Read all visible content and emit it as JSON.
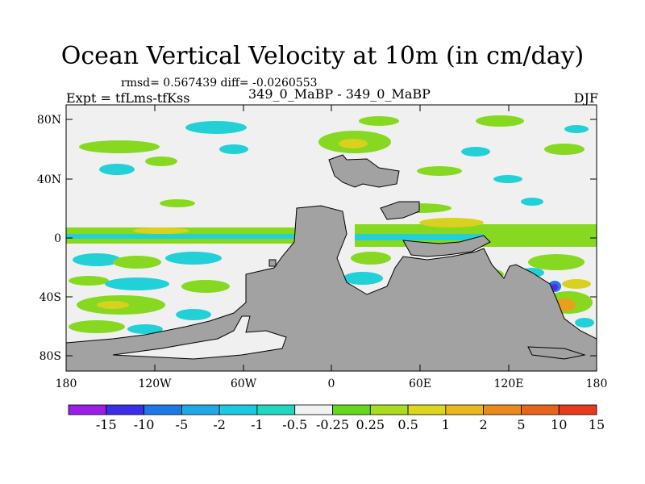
{
  "title": "Ocean Vertical Velocity at 10m (in cm/day)",
  "stats": "rmsd= 0.567439 diff= -0.0260553",
  "expt": "Expt = tfLms-tfKss",
  "case": "349_0_MaBP - 349_0_MaBP",
  "season": "DJF",
  "lat_ticks": [
    "80N",
    "40N",
    "0",
    "40S",
    "80S"
  ],
  "lon_ticks": [
    "180",
    "120W",
    "60W",
    "0",
    "60E",
    "120E",
    "180"
  ],
  "colorbar": {
    "labels": [
      "-15",
      "-10",
      "-5",
      "-2",
      "-1",
      "-0.5",
      "-0.25",
      "0.25",
      "0.5",
      "1",
      "2",
      "5",
      "10",
      "15"
    ],
    "colors": [
      "#9a1ee8",
      "#3b2ee8",
      "#1f78e8",
      "#21a8e6",
      "#1ec8e0",
      "#20d8c0",
      "#f2f2f2",
      "#64d81c",
      "#a8dc1c",
      "#dcd61c",
      "#e8b81c",
      "#e88a1c",
      "#e8641c",
      "#e83a1c"
    ]
  },
  "colors": {
    "land": "#a2a2a2",
    "neutral": "#f0f0f0",
    "cyan": "#22d0d8",
    "green": "#86d820",
    "yellow": "#d8d21e",
    "orange": "#e8a01c",
    "blue": "#1f78e8",
    "purple": "#5a28e0"
  }
}
